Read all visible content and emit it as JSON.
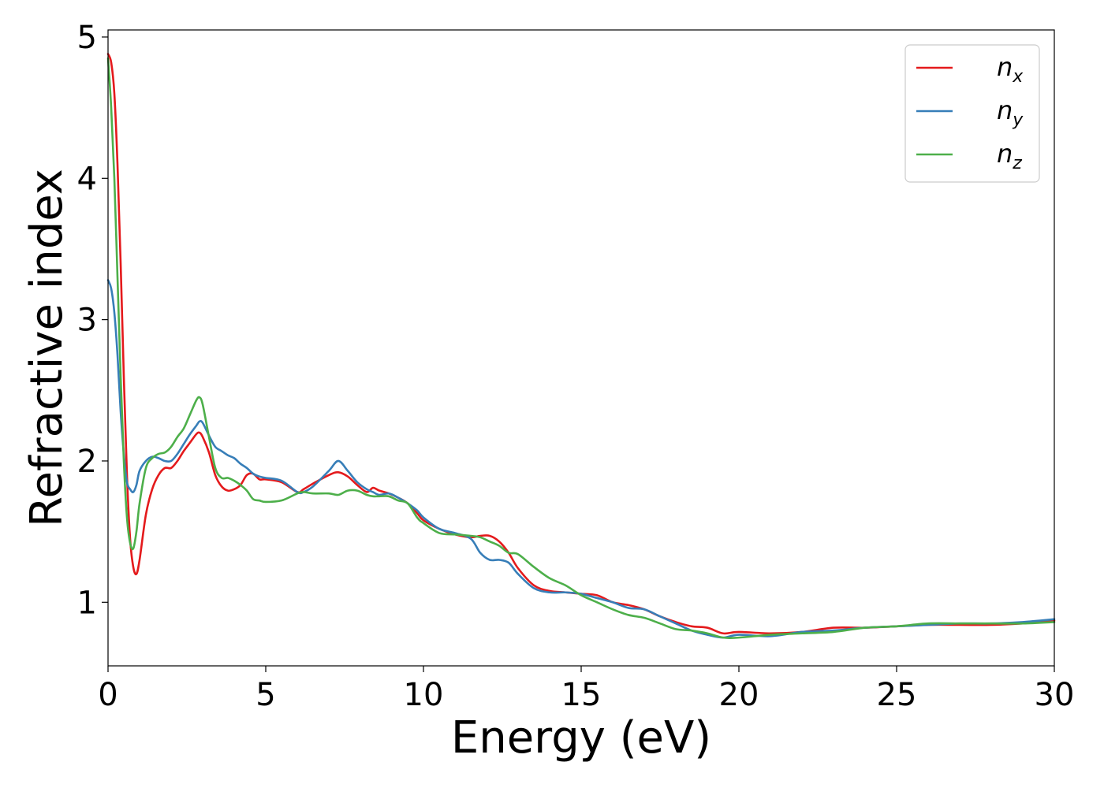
{
  "chart_data": {
    "type": "line",
    "xlabel": "Energy (eV)",
    "ylabel": "Refractive index",
    "xlim": [
      0,
      30
    ],
    "ylim": [
      0.55,
      5.05
    ],
    "xticks": [
      "0",
      "5",
      "10",
      "15",
      "20",
      "25",
      "30"
    ],
    "yticks": [
      "1",
      "2",
      "3",
      "4",
      "5"
    ],
    "grid": false,
    "legend_position": "top-right",
    "series": [
      {
        "name": "n",
        "subscript": "x",
        "color": "#e41a1c",
        "x": [
          0,
          0.1,
          0.2,
          0.3,
          0.4,
          0.5,
          0.6,
          0.7,
          0.8,
          0.9,
          1.0,
          1.2,
          1.4,
          1.6,
          1.8,
          2.0,
          2.2,
          2.4,
          2.6,
          2.8,
          2.9,
          3.0,
          3.2,
          3.4,
          3.6,
          3.8,
          4.0,
          4.2,
          4.4,
          4.6,
          4.8,
          5.0,
          5.5,
          6.0,
          6.2,
          6.5,
          7.0,
          7.3,
          7.6,
          7.9,
          8.2,
          8.4,
          8.6,
          8.9,
          9.2,
          9.5,
          9.8,
          10.0,
          10.5,
          11.0,
          11.5,
          11.8,
          12.1,
          12.4,
          12.7,
          13.0,
          13.5,
          14.0,
          14.5,
          15.0,
          15.5,
          16.0,
          16.5,
          17.0,
          17.5,
          18.0,
          18.5,
          19.0,
          19.5,
          20.0,
          21.0,
          22.0,
          23.0,
          24.0,
          25.0,
          26.0,
          27.0,
          28.0,
          29.0,
          30.0
        ],
        "y": [
          4.88,
          4.82,
          4.6,
          4.1,
          3.4,
          2.6,
          1.9,
          1.45,
          1.25,
          1.2,
          1.3,
          1.62,
          1.8,
          1.9,
          1.95,
          1.95,
          2.0,
          2.07,
          2.13,
          2.19,
          2.2,
          2.17,
          2.06,
          1.9,
          1.82,
          1.79,
          1.8,
          1.83,
          1.9,
          1.91,
          1.87,
          1.87,
          1.85,
          1.78,
          1.8,
          1.84,
          1.9,
          1.92,
          1.89,
          1.83,
          1.78,
          1.81,
          1.79,
          1.77,
          1.74,
          1.7,
          1.63,
          1.58,
          1.52,
          1.48,
          1.46,
          1.47,
          1.47,
          1.43,
          1.35,
          1.24,
          1.12,
          1.08,
          1.07,
          1.06,
          1.05,
          1.0,
          0.98,
          0.95,
          0.9,
          0.86,
          0.83,
          0.82,
          0.78,
          0.79,
          0.78,
          0.79,
          0.82,
          0.82,
          0.83,
          0.84,
          0.84,
          0.84,
          0.85,
          0.87
        ]
      },
      {
        "name": "n",
        "subscript": "y",
        "color": "#377eb8",
        "x": [
          0,
          0.1,
          0.2,
          0.3,
          0.4,
          0.5,
          0.6,
          0.7,
          0.8,
          0.9,
          1.0,
          1.2,
          1.4,
          1.6,
          1.8,
          2.0,
          2.2,
          2.4,
          2.6,
          2.8,
          2.9,
          3.0,
          3.2,
          3.4,
          3.6,
          3.8,
          4.0,
          4.2,
          4.4,
          4.6,
          4.8,
          5.0,
          5.5,
          6.0,
          6.2,
          6.5,
          7.0,
          7.3,
          7.6,
          7.9,
          8.2,
          8.4,
          8.6,
          8.9,
          9.2,
          9.5,
          9.8,
          10.0,
          10.5,
          11.0,
          11.5,
          11.8,
          12.1,
          12.4,
          12.7,
          13.0,
          13.5,
          14.0,
          14.5,
          15.0,
          15.5,
          16.0,
          16.5,
          17.0,
          17.5,
          18.0,
          18.5,
          19.0,
          19.5,
          20.0,
          21.0,
          22.0,
          23.0,
          24.0,
          25.0,
          26.0,
          27.0,
          28.0,
          29.0,
          30.0
        ],
        "y": [
          3.28,
          3.22,
          3.05,
          2.75,
          2.35,
          2.05,
          1.85,
          1.8,
          1.78,
          1.83,
          1.93,
          2.0,
          2.03,
          2.02,
          2.0,
          2.0,
          2.05,
          2.12,
          2.19,
          2.25,
          2.28,
          2.27,
          2.18,
          2.1,
          2.07,
          2.04,
          2.02,
          1.98,
          1.95,
          1.91,
          1.89,
          1.88,
          1.86,
          1.78,
          1.78,
          1.82,
          1.93,
          2.0,
          1.93,
          1.85,
          1.8,
          1.78,
          1.76,
          1.77,
          1.74,
          1.7,
          1.65,
          1.6,
          1.52,
          1.49,
          1.45,
          1.35,
          1.3,
          1.3,
          1.28,
          1.2,
          1.1,
          1.07,
          1.07,
          1.06,
          1.03,
          1.0,
          0.96,
          0.95,
          0.9,
          0.85,
          0.8,
          0.77,
          0.75,
          0.77,
          0.76,
          0.79,
          0.8,
          0.82,
          0.83,
          0.84,
          0.85,
          0.85,
          0.86,
          0.88
        ]
      },
      {
        "name": "n",
        "subscript": "z",
        "color": "#4daf4a",
        "x": [
          0,
          0.1,
          0.2,
          0.3,
          0.4,
          0.5,
          0.6,
          0.7,
          0.8,
          0.9,
          1.0,
          1.2,
          1.4,
          1.6,
          1.8,
          2.0,
          2.2,
          2.4,
          2.6,
          2.8,
          2.9,
          3.0,
          3.2,
          3.4,
          3.6,
          3.8,
          4.0,
          4.2,
          4.4,
          4.6,
          4.8,
          5.0,
          5.5,
          6.0,
          6.2,
          6.5,
          7.0,
          7.3,
          7.6,
          7.9,
          8.2,
          8.4,
          8.6,
          8.9,
          9.2,
          9.5,
          9.8,
          10.0,
          10.5,
          11.0,
          11.5,
          11.8,
          12.1,
          12.4,
          12.7,
          13.0,
          13.5,
          14.0,
          14.5,
          15.0,
          15.5,
          16.0,
          16.5,
          17.0,
          17.5,
          18.0,
          18.5,
          19.0,
          19.5,
          20.0,
          21.0,
          22.0,
          23.0,
          24.0,
          25.0,
          26.0,
          27.0,
          28.0,
          29.0,
          30.0
        ],
        "y": [
          4.85,
          4.5,
          4.0,
          3.3,
          2.6,
          2.0,
          1.6,
          1.42,
          1.38,
          1.5,
          1.7,
          1.95,
          2.02,
          2.05,
          2.06,
          2.1,
          2.17,
          2.23,
          2.33,
          2.43,
          2.45,
          2.4,
          2.17,
          1.95,
          1.88,
          1.88,
          1.86,
          1.83,
          1.79,
          1.73,
          1.72,
          1.71,
          1.72,
          1.77,
          1.78,
          1.77,
          1.77,
          1.76,
          1.79,
          1.79,
          1.76,
          1.75,
          1.75,
          1.75,
          1.72,
          1.7,
          1.6,
          1.56,
          1.49,
          1.48,
          1.47,
          1.46,
          1.43,
          1.4,
          1.35,
          1.34,
          1.25,
          1.17,
          1.12,
          1.05,
          1.0,
          0.95,
          0.91,
          0.89,
          0.85,
          0.81,
          0.8,
          0.78,
          0.75,
          0.75,
          0.77,
          0.78,
          0.79,
          0.82,
          0.83,
          0.85,
          0.85,
          0.85,
          0.85,
          0.86
        ]
      }
    ]
  }
}
